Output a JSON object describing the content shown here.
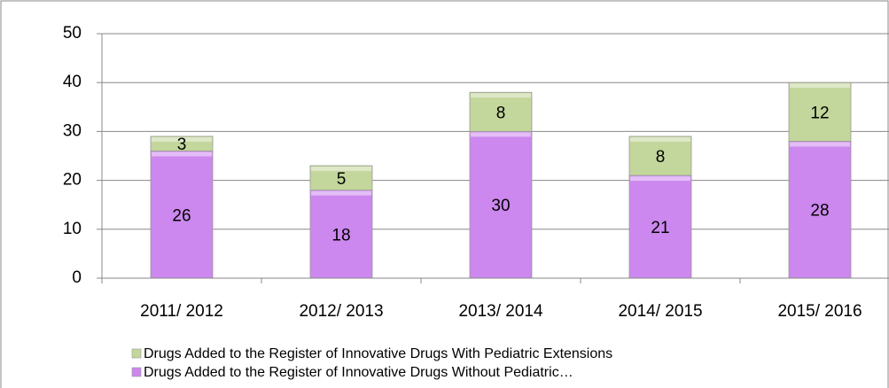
{
  "chart_data": {
    "type": "stacked_bar",
    "categories": [
      "2011/ 2012",
      "2012/ 2013",
      "2013/ 2014",
      "2014/ 2015",
      "2015/ 2016"
    ],
    "series": [
      {
        "name": "Drugs Added to the Register of Innovative Drugs Without Pediatric…",
        "color": "#cc88ee",
        "values": [
          26,
          18,
          30,
          21,
          28
        ]
      },
      {
        "name": "Drugs Added to the Register of Innovative Drugs With Pediatric Extensions",
        "color": "#c3d69b",
        "values": [
          3,
          5,
          8,
          8,
          12
        ]
      }
    ],
    "ylim": [
      0,
      50
    ],
    "yticks": [
      0,
      10,
      20,
      30,
      40,
      50
    ],
    "grid": true,
    "legend": "bottom"
  }
}
